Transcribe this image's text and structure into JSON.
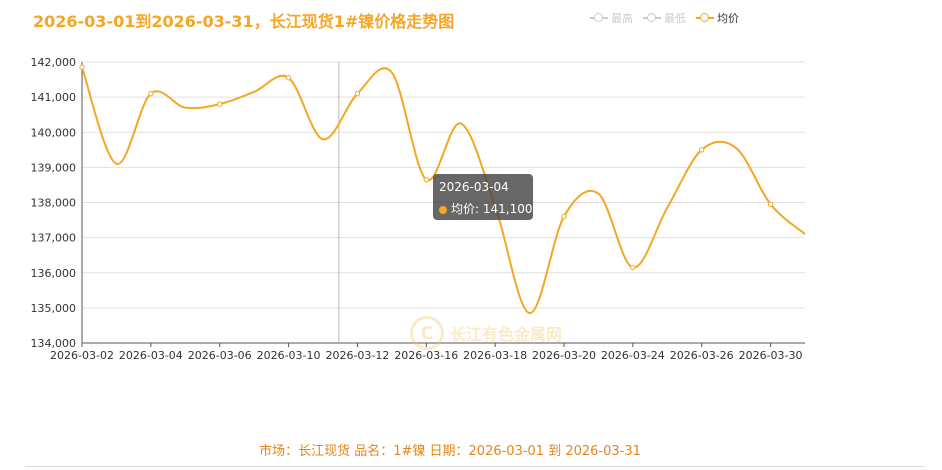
{
  "title": "2026-03-01到2026-03-31，长江现货1#镍价格走势图",
  "legend": [
    {
      "label": "最高",
      "active": false
    },
    {
      "label": "最低",
      "active": false
    },
    {
      "label": "均价",
      "active": true
    }
  ],
  "colors": {
    "accent": "#f5a623",
    "grid": "#e0e0e0",
    "axis": "#333333",
    "footer": "#e6851a"
  },
  "tooltip": {
    "date": "2026-03-04",
    "label": "均价: 141,100"
  },
  "watermark": {
    "text": "长江有色金属网",
    "logo_glyph": "C"
  },
  "footer": {
    "text": "市场：长江现货   品名：1#镍   日期：2026-03-01 到 2026-03-31"
  },
  "chart_data": {
    "type": "line",
    "categories": [
      "2026-03-02",
      "2026-03-04",
      "2026-03-06",
      "2026-03-10",
      "2026-03-12",
      "2026-03-16",
      "2026-03-18",
      "2026-03-20",
      "2026-03-24",
      "2026-03-26",
      "2026-03-30"
    ],
    "series": [
      {
        "name": "均价",
        "points": [
          [
            0,
            141850
          ],
          [
            0.5,
            139100
          ],
          [
            1,
            141100
          ],
          [
            1.5,
            140700
          ],
          [
            2,
            140800
          ],
          [
            2.5,
            141150
          ],
          [
            3,
            141550
          ],
          [
            3.5,
            139800
          ],
          [
            4,
            141100
          ],
          [
            4.5,
            141700
          ],
          [
            5,
            138650
          ],
          [
            5.5,
            140250
          ],
          [
            6,
            137900
          ],
          [
            6.5,
            134850
          ],
          [
            7,
            137600
          ],
          [
            7.5,
            138250
          ],
          [
            8,
            136150
          ],
          [
            8.5,
            137850
          ],
          [
            9,
            139500
          ],
          [
            9.5,
            139550
          ],
          [
            10,
            137950
          ],
          [
            10.5,
            137100
          ]
        ]
      }
    ],
    "y_ticks": [
      134000,
      135000,
      136000,
      137000,
      138000,
      139000,
      140000,
      141000,
      142000
    ],
    "y_tick_labels": [
      "134,000",
      "135,000",
      "136,000",
      "137,000",
      "138,000",
      "139,000",
      "140,000",
      "141,000",
      "142,000"
    ],
    "ylim": [
      134000,
      142000
    ],
    "grid": true,
    "legend_position": "top-right",
    "highlight_category": "2026-03-04"
  }
}
